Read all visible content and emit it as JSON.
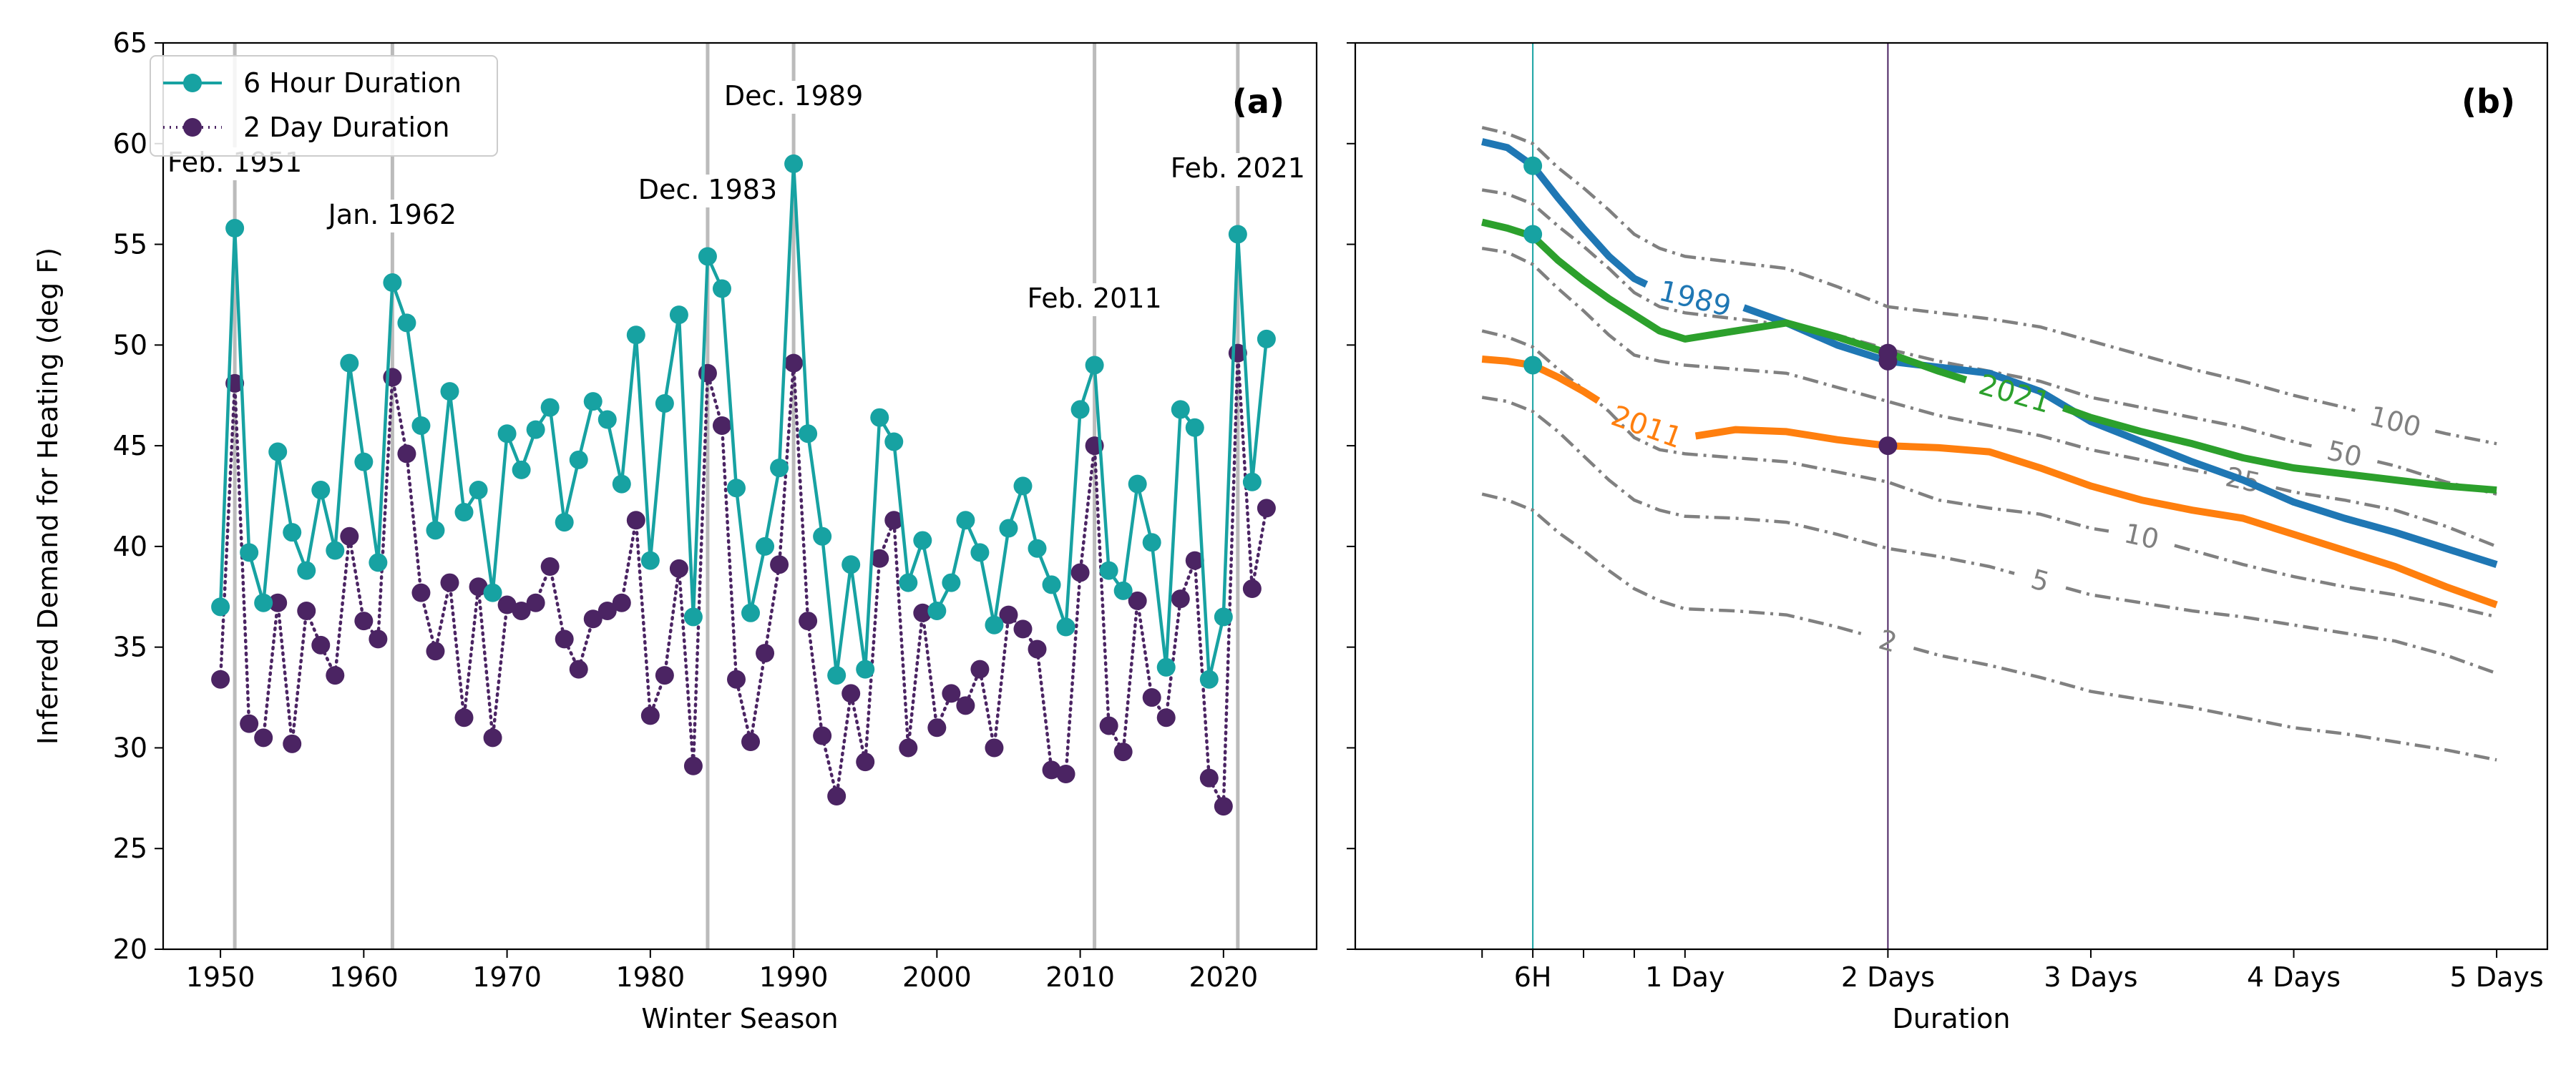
{
  "figure": {
    "background": "#ffffff"
  },
  "colors": {
    "six_hour": "#17a2a2",
    "two_day": "#4b2463",
    "year_1989": "#1f77b4",
    "year_2021": "#2ca02c",
    "year_2011": "#ff7f0e",
    "return_period": "#808080",
    "event_line": "#bbbbbb",
    "axis": "#000000"
  },
  "chart_data": [
    {
      "type": "line",
      "panel_label": "(a)",
      "xlabel": "Winter Season",
      "ylabel": "Inferred Demand for Heating (deg F)",
      "xlim": [
        1946,
        2026.5
      ],
      "ylim": [
        20,
        65
      ],
      "x_ticks": [
        1950,
        1960,
        1970,
        1980,
        1990,
        2000,
        2010,
        2020
      ],
      "y_ticks": [
        20,
        25,
        30,
        35,
        40,
        45,
        50,
        55,
        60,
        65
      ],
      "grid": false,
      "legend": "top-left",
      "x": [
        1950,
        1951,
        1952,
        1953,
        1954,
        1955,
        1956,
        1957,
        1958,
        1959,
        1960,
        1961,
        1962,
        1963,
        1964,
        1965,
        1966,
        1967,
        1968,
        1969,
        1970,
        1971,
        1972,
        1973,
        1974,
        1975,
        1976,
        1977,
        1978,
        1979,
        1980,
        1981,
        1982,
        1983,
        1984,
        1985,
        1986,
        1987,
        1988,
        1989,
        1990,
        1991,
        1992,
        1993,
        1994,
        1995,
        1996,
        1997,
        1998,
        1999,
        2000,
        2001,
        2002,
        2003,
        2004,
        2005,
        2006,
        2007,
        2008,
        2009,
        2010,
        2011,
        2012,
        2013,
        2014,
        2015,
        2016,
        2017,
        2018,
        2019,
        2020,
        2021,
        2022,
        2023
      ],
      "series": [
        {
          "name": "6 Hour Duration",
          "color_key": "six_hour",
          "style": "solid",
          "values": [
            37.0,
            55.8,
            39.7,
            37.2,
            44.7,
            40.7,
            38.8,
            42.8,
            39.8,
            49.1,
            44.2,
            39.2,
            53.1,
            51.1,
            46.0,
            40.8,
            47.7,
            41.7,
            42.8,
            37.7,
            45.6,
            43.8,
            45.8,
            46.9,
            41.2,
            44.3,
            47.2,
            46.3,
            43.1,
            50.5,
            39.3,
            47.1,
            51.5,
            36.5,
            54.4,
            52.8,
            42.9,
            36.7,
            40.0,
            43.9,
            59.0,
            45.6,
            40.5,
            33.6,
            39.1,
            33.9,
            46.4,
            45.2,
            38.2,
            40.3,
            36.8,
            38.2,
            41.3,
            39.7,
            36.1,
            40.9,
            43.0,
            39.9,
            38.1,
            36.0,
            46.8,
            49.0,
            38.8,
            37.8,
            43.1,
            40.2,
            34.0,
            46.8,
            45.9,
            33.4,
            36.5,
            55.5,
            43.2,
            50.3
          ]
        },
        {
          "name": "2 Day Duration",
          "color_key": "two_day",
          "style": "dotted",
          "values": [
            33.4,
            48.1,
            31.2,
            30.5,
            37.2,
            30.2,
            36.8,
            35.1,
            33.6,
            40.5,
            36.3,
            35.4,
            48.4,
            44.6,
            37.7,
            34.8,
            38.2,
            31.5,
            38.0,
            30.5,
            37.1,
            36.8,
            37.2,
            39.0,
            35.4,
            33.9,
            36.4,
            36.8,
            37.2,
            41.3,
            31.6,
            33.6,
            38.9,
            29.1,
            48.6,
            46.0,
            33.4,
            30.3,
            34.7,
            39.1,
            49.1,
            36.3,
            30.6,
            27.6,
            32.7,
            29.3,
            39.4,
            41.3,
            30.0,
            36.7,
            31.0,
            32.7,
            32.1,
            33.9,
            30.0,
            36.6,
            35.9,
            34.9,
            28.9,
            28.7,
            38.7,
            45.0,
            31.1,
            29.8,
            37.3,
            32.5,
            31.5,
            37.4,
            39.3,
            28.5,
            27.1,
            49.6,
            37.9,
            41.9
          ]
        }
      ],
      "events": [
        {
          "year": 1951,
          "label": "Feb. 1951"
        },
        {
          "year": 1962,
          "label": "Jan. 1962"
        },
        {
          "year": 1984,
          "label": "Dec. 1983"
        },
        {
          "year": 1990,
          "label": "Dec. 1989"
        },
        {
          "year": 2011,
          "label": "Feb. 2011"
        },
        {
          "year": 2021,
          "label": "Feb. 2021"
        }
      ]
    },
    {
      "type": "line",
      "panel_label": "(b)",
      "xlabel": "Duration",
      "x_unit": "hours",
      "xlim": [
        -15,
        126
      ],
      "ylim": [
        20,
        65
      ],
      "x_ticks": [
        0,
        6,
        12,
        18,
        24,
        48,
        72,
        96,
        120
      ],
      "x_tick_labels": [
        "",
        "6H",
        "",
        "",
        "1 Day",
        "2 Days",
        "3 Days",
        "4 Days",
        "5 Days"
      ],
      "y_ticks": [
        20,
        25,
        30,
        35,
        40,
        45,
        50,
        55,
        60,
        65
      ],
      "grid": false,
      "x": [
        0,
        3,
        6,
        9,
        12,
        15,
        18,
        21,
        24,
        30,
        36,
        42,
        48,
        54,
        60,
        66,
        72,
        78,
        84,
        90,
        96,
        102,
        108,
        114,
        120
      ],
      "return_periods": [
        {
          "label": "2",
          "values": [
            42.6,
            42.3,
            41.8,
            40.7,
            39.8,
            38.8,
            37.9,
            37.3,
            36.9,
            36.8,
            36.6,
            36.0,
            35.3,
            34.6,
            34.1,
            33.5,
            32.8,
            32.4,
            32.0,
            31.5,
            31.0,
            30.7,
            30.3,
            29.9,
            29.4
          ]
        },
        {
          "label": "5",
          "values": [
            47.4,
            47.2,
            46.7,
            45.7,
            44.5,
            43.3,
            42.3,
            41.8,
            41.5,
            41.4,
            41.2,
            40.6,
            39.9,
            39.5,
            39.0,
            38.3,
            37.6,
            37.2,
            36.8,
            36.5,
            36.1,
            35.7,
            35.3,
            34.6,
            33.7
          ]
        },
        {
          "label": "10",
          "values": [
            50.7,
            50.4,
            49.9,
            48.8,
            47.8,
            46.7,
            45.4,
            44.8,
            44.6,
            44.4,
            44.2,
            43.7,
            43.2,
            42.3,
            41.9,
            41.6,
            40.9,
            40.5,
            39.8,
            39.1,
            38.5,
            38.0,
            37.6,
            37.1,
            36.5
          ]
        },
        {
          "label": "25",
          "values": [
            54.8,
            54.6,
            54.0,
            52.8,
            51.7,
            50.5,
            49.5,
            49.2,
            49.0,
            48.8,
            48.6,
            47.9,
            47.2,
            46.5,
            46.0,
            45.5,
            44.8,
            44.3,
            43.8,
            43.3,
            42.7,
            42.3,
            41.8,
            41.0,
            40.0
          ]
        },
        {
          "label": "50",
          "values": [
            57.7,
            57.5,
            57.0,
            55.9,
            54.9,
            53.8,
            52.6,
            51.9,
            51.6,
            51.3,
            51.0,
            50.5,
            49.8,
            49.2,
            48.7,
            48.2,
            47.4,
            46.9,
            46.4,
            45.9,
            45.2,
            44.6,
            44.0,
            43.2,
            42.6
          ]
        },
        {
          "label": "100",
          "values": [
            60.8,
            60.5,
            60.0,
            58.8,
            57.8,
            56.7,
            55.5,
            54.8,
            54.4,
            54.1,
            53.8,
            52.9,
            51.9,
            51.6,
            51.3,
            50.9,
            50.2,
            49.5,
            48.8,
            48.2,
            47.5,
            46.9,
            46.2,
            45.6,
            45.1
          ]
        }
      ],
      "year_curves": [
        {
          "label": "1989",
          "color_key": "year_1989",
          "values": [
            60.1,
            59.8,
            58.9,
            57.3,
            55.8,
            54.4,
            53.3,
            52.7,
            52.4,
            52.0,
            51.1,
            50.0,
            49.2,
            48.9,
            48.6,
            47.7,
            46.2,
            45.2,
            44.2,
            43.3,
            42.2,
            41.4,
            40.7,
            39.9,
            39.1
          ]
        },
        {
          "label": "2021",
          "color_key": "year_2021",
          "values": [
            56.1,
            55.8,
            55.4,
            54.2,
            53.2,
            52.3,
            51.5,
            50.7,
            50.3,
            50.7,
            51.1,
            50.4,
            49.6,
            48.7,
            47.9,
            47.3,
            46.4,
            45.7,
            45.1,
            44.4,
            43.9,
            43.6,
            43.3,
            43.0,
            42.8
          ]
        },
        {
          "label": "2011",
          "color_key": "year_2011",
          "values": [
            49.3,
            49.2,
            49.0,
            48.4,
            47.7,
            46.9,
            46.2,
            45.7,
            45.4,
            45.8,
            45.7,
            45.3,
            45.0,
            44.9,
            44.7,
            43.9,
            43.0,
            42.3,
            41.8,
            41.4,
            40.6,
            39.8,
            39.0,
            38.0,
            37.1
          ]
        }
      ],
      "markers": [
        {
          "x": 6,
          "y": 58.9,
          "color_key": "six_hour"
        },
        {
          "x": 6,
          "y": 55.5,
          "color_key": "six_hour"
        },
        {
          "x": 6,
          "y": 49.0,
          "color_key": "six_hour"
        },
        {
          "x": 48,
          "y": 49.6,
          "color_key": "two_day"
        },
        {
          "x": 48,
          "y": 49.2,
          "color_key": "two_day"
        },
        {
          "x": 48,
          "y": 45.0,
          "color_key": "two_day"
        }
      ],
      "vlines": [
        {
          "x": 6,
          "color_key": "six_hour"
        },
        {
          "x": 48,
          "color_key": "two_day"
        }
      ]
    }
  ]
}
